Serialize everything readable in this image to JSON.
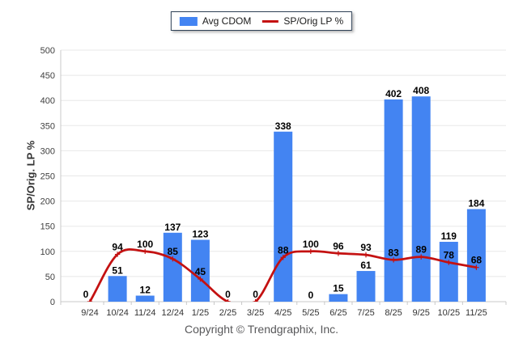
{
  "legend": {
    "series1": "Avg CDOM",
    "series2": "SP/Orig LP %"
  },
  "footer": "Copyright © Trendgraphix, Inc.",
  "colors": {
    "bar": "#4384F2",
    "line": "#C41111",
    "grid": "#e8e8e8",
    "axis": "#c8c8c8",
    "tick_text": "#404040",
    "label_text": "#000000"
  },
  "chart_data": {
    "type": "combo",
    "title": "",
    "ylabel": "SP/Orig. LP %",
    "xlabel": "",
    "categories": [
      "9/24",
      "10/24",
      "11/24",
      "12/24",
      "1/25",
      "2/25",
      "3/25",
      "4/25",
      "5/25",
      "6/25",
      "7/25",
      "8/25",
      "9/25",
      "10/25",
      "11/25"
    ],
    "series": [
      {
        "name": "Avg CDOM",
        "type": "bar",
        "values": [
          0,
          51,
          12,
          137,
          123,
          0,
          0,
          338,
          0,
          15,
          61,
          402,
          408,
          119,
          184
        ]
      },
      {
        "name": "SP/Orig LP %",
        "type": "line",
        "values": [
          0,
          94,
          100,
          85,
          45,
          0,
          0,
          88,
          100,
          96,
          93,
          83,
          89,
          78,
          68
        ]
      }
    ],
    "ylim": [
      0,
      500
    ],
    "ytick_step": 50,
    "grid": "horizontal",
    "legend_position": "top-center"
  }
}
